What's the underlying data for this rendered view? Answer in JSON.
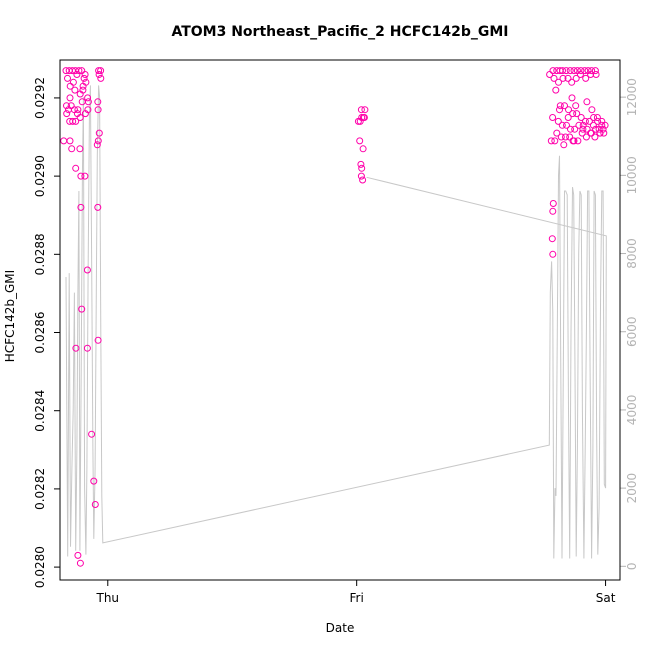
{
  "chart_data": {
    "type": "scatter",
    "title": "ATOM3 Northeast_Pacific_2 HCFC142b_GMI",
    "xlabel": "Date",
    "ylabel": "HCFC142b_GMI",
    "x_ticks": [
      {
        "value": 1.0,
        "label": "Thu"
      },
      {
        "value": 2.0,
        "label": "Fri"
      },
      {
        "value": 3.0,
        "label": "Sat"
      }
    ],
    "xlim": [
      0.808,
      3.058
    ],
    "y_ticks": [
      {
        "value": 0.028,
        "label": "0.0280"
      },
      {
        "value": 0.0282,
        "label": "0.0282"
      },
      {
        "value": 0.0284,
        "label": "0.0284"
      },
      {
        "value": 0.0286,
        "label": "0.0286"
      },
      {
        "value": 0.0288,
        "label": "0.0288"
      },
      {
        "value": 0.029,
        "label": "0.0290"
      },
      {
        "value": 0.0292,
        "label": "0.0292"
      }
    ],
    "ylim": [
      0.027967,
      0.029297
    ],
    "y2_ticks": [
      {
        "value": 0,
        "label": "0"
      },
      {
        "value": 2000,
        "label": "2000"
      },
      {
        "value": 4000,
        "label": "4000"
      },
      {
        "value": 6000,
        "label": "6000"
      },
      {
        "value": 8000,
        "label": "8000"
      },
      {
        "value": 10000,
        "label": "10000"
      },
      {
        "value": 12000,
        "label": "12000"
      }
    ],
    "y2lim": [
      -350,
      12950
    ],
    "grid": false,
    "colors": {
      "points": "#ff00aa",
      "altitude_line": "#c8c8c8",
      "right_axis": "#b3b3b3"
    },
    "series": [
      {
        "values": [
          [
            0.832,
            0.02927
          ],
          [
            0.845,
            0.02927
          ],
          [
            0.858,
            0.02927
          ],
          [
            0.87,
            0.02927
          ],
          [
            0.884,
            0.02927
          ],
          [
            0.895,
            0.02927
          ],
          [
            0.838,
            0.02925
          ],
          [
            0.849,
            0.02923
          ],
          [
            0.862,
            0.02924
          ],
          [
            0.876,
            0.02926
          ],
          [
            0.889,
            0.02921
          ],
          [
            0.848,
            0.0292
          ],
          [
            0.834,
            0.02918
          ],
          [
            0.842,
            0.02917
          ],
          [
            0.853,
            0.02918
          ],
          [
            0.866,
            0.02917
          ],
          [
            0.878,
            0.02916
          ],
          [
            0.889,
            0.02915
          ],
          [
            0.835,
            0.02916
          ],
          [
            0.847,
            0.02914
          ],
          [
            0.859,
            0.02914
          ],
          [
            0.871,
            0.02914
          ],
          [
            0.868,
            0.02922
          ],
          [
            0.88,
            0.02917
          ],
          [
            0.897,
            0.02919
          ],
          [
            0.9,
            0.02922
          ],
          [
            0.905,
            0.02925
          ],
          [
            0.909,
            0.02926
          ],
          [
            0.912,
            0.02924
          ],
          [
            0.901,
            0.02923
          ],
          [
            0.919,
            0.0292
          ],
          [
            0.922,
            0.02919
          ],
          [
            0.92,
            0.02917
          ],
          [
            0.91,
            0.02916
          ],
          [
            0.823,
            0.02909
          ],
          [
            0.848,
            0.02909
          ],
          [
            0.855,
            0.02907
          ],
          [
            0.888,
            0.02907
          ],
          [
            0.871,
            0.02902
          ],
          [
            0.892,
            0.029
          ],
          [
            0.908,
            0.029
          ],
          [
            0.892,
            0.02892
          ],
          [
            0.963,
            0.02927
          ],
          [
            0.971,
            0.02927
          ],
          [
            0.965,
            0.02926
          ],
          [
            0.972,
            0.02925
          ],
          [
            0.96,
            0.02919
          ],
          [
            0.961,
            0.02917
          ],
          [
            0.966,
            0.02911
          ],
          [
            0.962,
            0.02909
          ],
          [
            0.958,
            0.02908
          ],
          [
            0.96,
            0.02892
          ],
          [
            0.918,
            0.02876
          ],
          [
            0.895,
            0.02866
          ],
          [
            0.872,
            0.02856
          ],
          [
            0.918,
            0.02856
          ],
          [
            0.961,
            0.02858
          ],
          [
            0.935,
            0.02834
          ],
          [
            0.944,
            0.02822
          ],
          [
            0.95,
            0.02816
          ],
          [
            0.88,
            0.02803
          ],
          [
            0.89,
            0.02801
          ],
          [
            2.007,
            0.02914
          ],
          [
            2.019,
            0.02917
          ],
          [
            2.033,
            0.02917
          ],
          [
            2.02,
            0.02915
          ],
          [
            2.031,
            0.02915
          ],
          [
            2.027,
            0.02915
          ],
          [
            2.014,
            0.02914
          ],
          [
            2.012,
            0.02909
          ],
          [
            2.026,
            0.02907
          ],
          [
            2.017,
            0.02903
          ],
          [
            2.02,
            0.02902
          ],
          [
            2.019,
            0.029
          ],
          [
            2.024,
            0.02899
          ],
          [
            2.775,
            0.02926
          ],
          [
            2.789,
            0.02927
          ],
          [
            2.804,
            0.02927
          ],
          [
            2.817,
            0.02927
          ],
          [
            2.827,
            0.02927
          ],
          [
            2.842,
            0.02927
          ],
          [
            2.858,
            0.02927
          ],
          [
            2.873,
            0.02927
          ],
          [
            2.887,
            0.02927
          ],
          [
            2.901,
            0.02927
          ],
          [
            2.916,
            0.02927
          ],
          [
            2.93,
            0.02927
          ],
          [
            2.944,
            0.02927
          ],
          [
            2.959,
            0.02927
          ],
          [
            2.793,
            0.02925
          ],
          [
            2.811,
            0.02924
          ],
          [
            2.829,
            0.02925
          ],
          [
            2.849,
            0.02925
          ],
          [
            2.864,
            0.02924
          ],
          [
            2.882,
            0.02925
          ],
          [
            2.899,
            0.02926
          ],
          [
            2.92,
            0.02925
          ],
          [
            2.94,
            0.02926
          ],
          [
            2.962,
            0.02926
          ],
          [
            2.8,
            0.02922
          ],
          [
            2.865,
            0.0292
          ],
          [
            2.925,
            0.02919
          ],
          [
            2.818,
            0.02918
          ],
          [
            2.835,
            0.02918
          ],
          [
            2.851,
            0.02917
          ],
          [
            2.868,
            0.02916
          ],
          [
            2.884,
            0.02916
          ],
          [
            2.902,
            0.02915
          ],
          [
            2.919,
            0.02914
          ],
          [
            2.935,
            0.02914
          ],
          [
            2.952,
            0.02915
          ],
          [
            2.968,
            0.02914
          ],
          [
            2.985,
            0.02914
          ],
          [
            2.998,
            0.02913
          ],
          [
            2.81,
            0.02914
          ],
          [
            2.826,
            0.02913
          ],
          [
            2.843,
            0.02913
          ],
          [
            2.859,
            0.02912
          ],
          [
            2.876,
            0.02912
          ],
          [
            2.893,
            0.02913
          ],
          [
            2.909,
            0.02912
          ],
          [
            2.926,
            0.02912
          ],
          [
            2.943,
            0.02911
          ],
          [
            2.96,
            0.02912
          ],
          [
            2.977,
            0.02911
          ],
          [
            2.993,
            0.02911
          ],
          [
            2.787,
            0.02915
          ],
          [
            2.804,
            0.02911
          ],
          [
            2.822,
            0.0291
          ],
          [
            2.839,
            0.0291
          ],
          [
            2.856,
            0.0291
          ],
          [
            2.873,
            0.02909
          ],
          [
            2.889,
            0.02909
          ],
          [
            2.906,
            0.02911
          ],
          [
            2.923,
            0.0291
          ],
          [
            2.94,
            0.02911
          ],
          [
            2.957,
            0.0291
          ],
          [
            2.974,
            0.02912
          ],
          [
            2.99,
            0.02912
          ],
          [
            2.815,
            0.02917
          ],
          [
            2.88,
            0.02918
          ],
          [
            2.945,
            0.02917
          ],
          [
            2.85,
            0.02915
          ],
          [
            2.967,
            0.02915
          ],
          [
            2.978,
            0.02911
          ],
          [
            2.782,
            0.02909
          ],
          [
            2.796,
            0.02909
          ],
          [
            2.832,
            0.02908
          ],
          [
            2.869,
            0.02909
          ],
          [
            2.91,
            0.02913
          ],
          [
            2.951,
            0.02913
          ],
          [
            2.985,
            0.02913
          ],
          [
            2.79,
            0.02893
          ],
          [
            2.788,
            0.02891
          ],
          [
            2.786,
            0.02884
          ],
          [
            2.788,
            0.0288
          ]
        ]
      },
      {
        "axis": "right",
        "values": [
          [
            0.832,
            7400
          ],
          [
            0.839,
            250
          ],
          [
            0.845,
            7500
          ],
          [
            0.85,
            500
          ],
          [
            0.856,
            2500
          ],
          [
            0.861,
            4000
          ],
          [
            0.866,
            7000
          ],
          [
            0.871,
            400
          ],
          [
            0.876,
            3000
          ],
          [
            0.88,
            7000
          ],
          [
            0.884,
            9600
          ],
          [
            0.888,
            400
          ],
          [
            0.893,
            5000
          ],
          [
            0.898,
            10000
          ],
          [
            0.902,
            12000
          ],
          [
            0.907,
            2000
          ],
          [
            0.912,
            300
          ],
          [
            0.916,
            2500
          ],
          [
            0.921,
            7500
          ],
          [
            0.926,
            11500
          ],
          [
            0.93,
            12300
          ],
          [
            0.935,
            8000
          ],
          [
            0.94,
            3000
          ],
          [
            0.944,
            700
          ],
          [
            0.949,
            2500
          ],
          [
            0.954,
            7000
          ],
          [
            0.958,
            10500
          ],
          [
            0.963,
            12300
          ],
          [
            0.967,
            12000
          ],
          [
            0.972,
            6000
          ],
          [
            0.976,
            1800
          ],
          [
            0.98,
            600
          ],
          [
            2.774,
            3100
          ],
          [
            2.778,
            7000
          ],
          [
            2.783,
            7800
          ],
          [
            2.788,
            6500
          ],
          [
            2.792,
            200
          ],
          [
            2.797,
            2000
          ],
          [
            2.801,
            1800
          ],
          [
            2.806,
            6000
          ],
          [
            2.811,
            10000
          ],
          [
            2.815,
            10500
          ],
          [
            2.82,
            5000
          ],
          [
            2.825,
            200
          ],
          [
            2.83,
            5000
          ],
          [
            2.835,
            9600
          ],
          [
            2.84,
            9600
          ],
          [
            2.846,
            9500
          ],
          [
            2.851,
            4000
          ],
          [
            2.856,
            200
          ],
          [
            2.861,
            6000
          ],
          [
            2.867,
            9700
          ],
          [
            2.872,
            9500
          ],
          [
            2.877,
            5000
          ],
          [
            2.882,
            250
          ],
          [
            2.887,
            3000
          ],
          [
            2.892,
            8000
          ],
          [
            2.897,
            9600
          ],
          [
            2.902,
            9500
          ],
          [
            2.907,
            4000
          ],
          [
            2.913,
            200
          ],
          [
            2.918,
            3000
          ],
          [
            2.923,
            6000
          ],
          [
            2.928,
            9600
          ],
          [
            2.933,
            9600
          ],
          [
            2.938,
            5000
          ],
          [
            2.944,
            200
          ],
          [
            2.949,
            3000
          ],
          [
            2.954,
            9600
          ],
          [
            2.959,
            9500
          ],
          [
            2.964,
            3500
          ],
          [
            2.969,
            300
          ],
          [
            2.974,
            1500
          ],
          [
            2.98,
            7000
          ],
          [
            2.985,
            9600
          ],
          [
            2.99,
            9600
          ],
          [
            2.995,
            2100
          ],
          [
            3.0,
            2000
          ],
          [
            3.003,
            8450
          ],
          [
            2.04,
            9950
          ]
        ]
      }
    ]
  }
}
